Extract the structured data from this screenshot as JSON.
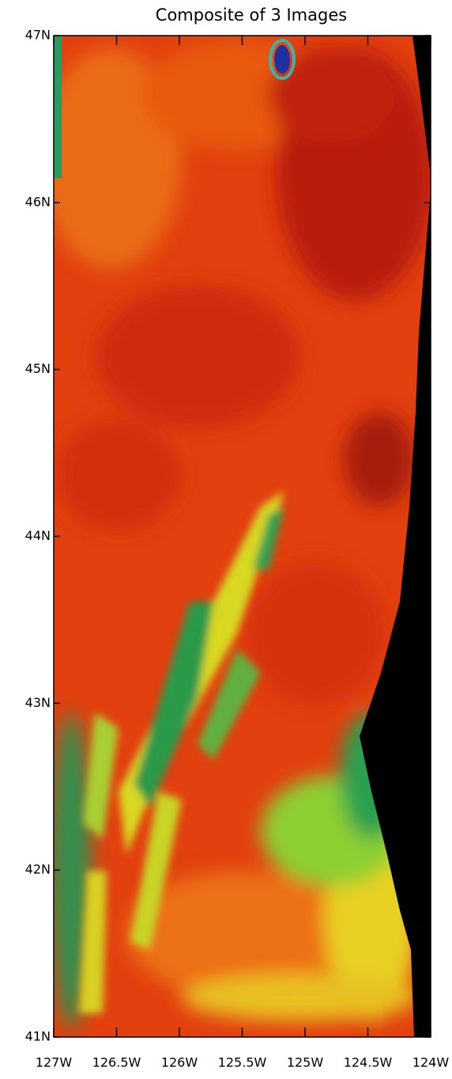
{
  "title": "Composite of 3 Images",
  "lat_ticks": [
    {
      "value": 47,
      "label": "47N"
    },
    {
      "value": 46,
      "label": "46N"
    },
    {
      "value": 45,
      "label": "45N"
    },
    {
      "value": 44,
      "label": "44N"
    },
    {
      "value": 43,
      "label": "43N"
    },
    {
      "value": 42,
      "label": "42N"
    },
    {
      "value": 41,
      "label": "41N"
    }
  ],
  "lon_ticks": [
    {
      "value": -127,
      "label": "127W"
    },
    {
      "value": -126.5,
      "label": "126.5W"
    },
    {
      "value": -126,
      "label": "126W"
    },
    {
      "value": -125.5,
      "label": "125.5W"
    },
    {
      "value": -125,
      "label": "125W"
    },
    {
      "value": -124.5,
      "label": "124.5W"
    },
    {
      "value": -124,
      "label": "124W"
    }
  ]
}
